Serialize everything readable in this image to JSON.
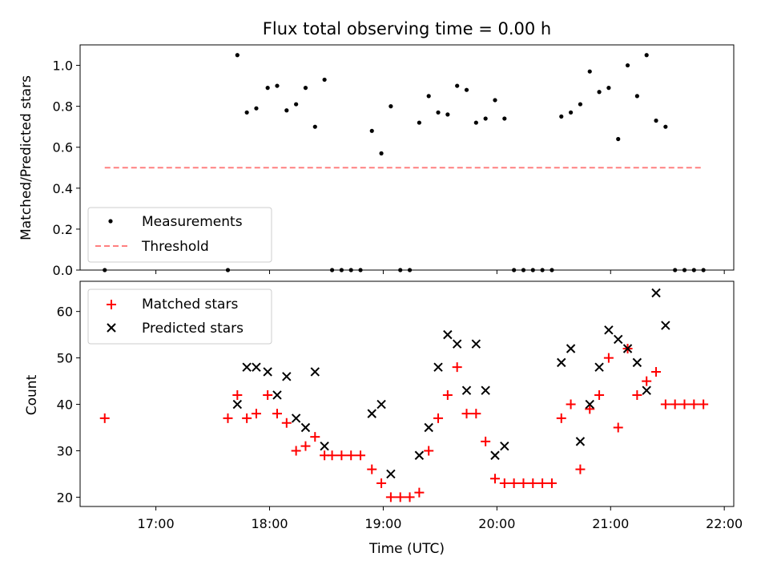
{
  "chart_data": [
    {
      "type": "scatter",
      "title": "Flux total observing time = 0.00 h",
      "xlabel": "",
      "ylabel": "Matched/Predicted stars",
      "xlim": [
        "16:20",
        "22:05"
      ],
      "ylim": [
        0,
        1.1
      ],
      "yticks": [
        "0.0",
        "0.2",
        "0.4",
        "0.6",
        "0.8",
        "1.0"
      ],
      "legend_position": "lower-left",
      "grid": false,
      "series": [
        {
          "name": "Measurements",
          "marker": "dot",
          "color": "#000000",
          "points": [
            [
              "16:33",
              0.0
            ],
            [
              "17:38",
              0.0
            ],
            [
              "17:43",
              1.05
            ],
            [
              "17:48",
              0.77
            ],
            [
              "17:53",
              0.79
            ],
            [
              "17:59",
              0.89
            ],
            [
              "18:04",
              0.9
            ],
            [
              "18:09",
              0.78
            ],
            [
              "18:14",
              0.81
            ],
            [
              "18:19",
              0.89
            ],
            [
              "18:24",
              0.7
            ],
            [
              "18:29",
              0.93
            ],
            [
              "18:33",
              0.0
            ],
            [
              "18:38",
              0.0
            ],
            [
              "18:43",
              0.0
            ],
            [
              "18:48",
              0.0
            ],
            [
              "18:54",
              0.68
            ],
            [
              "18:59",
              0.57
            ],
            [
              "19:04",
              0.8
            ],
            [
              "19:09",
              0.0
            ],
            [
              "19:14",
              0.0
            ],
            [
              "19:19",
              0.72
            ],
            [
              "19:24",
              0.85
            ],
            [
              "19:29",
              0.77
            ],
            [
              "19:34",
              0.76
            ],
            [
              "19:39",
              0.9
            ],
            [
              "19:44",
              0.88
            ],
            [
              "19:49",
              0.72
            ],
            [
              "19:54",
              0.74
            ],
            [
              "19:59",
              0.83
            ],
            [
              "20:04",
              0.74
            ],
            [
              "20:09",
              0.0
            ],
            [
              "20:14",
              0.0
            ],
            [
              "20:19",
              0.0
            ],
            [
              "20:24",
              0.0
            ],
            [
              "20:29",
              0.0
            ],
            [
              "20:34",
              0.75
            ],
            [
              "20:39",
              0.77
            ],
            [
              "20:44",
              0.81
            ],
            [
              "20:49",
              0.97
            ],
            [
              "20:54",
              0.87
            ],
            [
              "20:59",
              0.89
            ],
            [
              "21:04",
              0.64
            ],
            [
              "21:09",
              1.0
            ],
            [
              "21:14",
              0.85
            ],
            [
              "21:19",
              1.05
            ],
            [
              "21:24",
              0.73
            ],
            [
              "21:29",
              0.7
            ],
            [
              "21:34",
              0.0
            ],
            [
              "21:39",
              0.0
            ],
            [
              "21:44",
              0.0
            ],
            [
              "21:49",
              0.0
            ]
          ]
        },
        {
          "name": "Threshold",
          "style": "dashed-line",
          "color": "#ff8080",
          "points": [
            [
              "16:33",
              0.5
            ],
            [
              "21:49",
              0.5
            ]
          ]
        }
      ]
    },
    {
      "type": "scatter",
      "title": "",
      "xlabel": "Time (UTC)",
      "ylabel": "Count",
      "xlim": [
        "16:20",
        "22:05"
      ],
      "ylim": [
        18,
        66.5
      ],
      "xticks": [
        "17:00",
        "18:00",
        "19:00",
        "20:00",
        "21:00",
        "22:00"
      ],
      "yticks": [
        "20",
        "30",
        "40",
        "50",
        "60"
      ],
      "legend_position": "upper-left",
      "grid": false,
      "series": [
        {
          "name": "Matched stars",
          "marker": "plus",
          "color": "#ff0000",
          "points": [
            [
              "16:33",
              37
            ],
            [
              "17:38",
              37
            ],
            [
              "17:43",
              42
            ],
            [
              "17:48",
              37
            ],
            [
              "17:53",
              38
            ],
            [
              "17:59",
              42
            ],
            [
              "18:04",
              38
            ],
            [
              "18:09",
              36
            ],
            [
              "18:14",
              30
            ],
            [
              "18:19",
              31
            ],
            [
              "18:24",
              33
            ],
            [
              "18:29",
              29
            ],
            [
              "18:33",
              29
            ],
            [
              "18:38",
              29
            ],
            [
              "18:43",
              29
            ],
            [
              "18:48",
              29
            ],
            [
              "18:54",
              26
            ],
            [
              "18:59",
              23
            ],
            [
              "19:04",
              20
            ],
            [
              "19:09",
              20
            ],
            [
              "19:14",
              20
            ],
            [
              "19:19",
              21
            ],
            [
              "19:24",
              30
            ],
            [
              "19:29",
              37
            ],
            [
              "19:34",
              42
            ],
            [
              "19:39",
              48
            ],
            [
              "19:44",
              38
            ],
            [
              "19:49",
              38
            ],
            [
              "19:54",
              32
            ],
            [
              "19:59",
              24
            ],
            [
              "20:04",
              23
            ],
            [
              "20:09",
              23
            ],
            [
              "20:14",
              23
            ],
            [
              "20:19",
              23
            ],
            [
              "20:24",
              23
            ],
            [
              "20:29",
              23
            ],
            [
              "20:34",
              37
            ],
            [
              "20:39",
              40
            ],
            [
              "20:44",
              26
            ],
            [
              "20:49",
              39
            ],
            [
              "20:54",
              42
            ],
            [
              "20:59",
              50
            ],
            [
              "21:04",
              35
            ],
            [
              "21:09",
              52
            ],
            [
              "21:14",
              42
            ],
            [
              "21:19",
              45
            ],
            [
              "21:24",
              47
            ],
            [
              "21:29",
              40
            ],
            [
              "21:34",
              40
            ],
            [
              "21:39",
              40
            ],
            [
              "21:44",
              40
            ],
            [
              "21:49",
              40
            ]
          ]
        },
        {
          "name": "Predicted stars",
          "marker": "x",
          "color": "#000000",
          "points": [
            [
              "17:43",
              40
            ],
            [
              "17:48",
              48
            ],
            [
              "17:53",
              48
            ],
            [
              "17:59",
              47
            ],
            [
              "18:04",
              42
            ],
            [
              "18:09",
              46
            ],
            [
              "18:14",
              37
            ],
            [
              "18:19",
              35
            ],
            [
              "18:24",
              47
            ],
            [
              "18:29",
              31
            ],
            [
              "18:54",
              38
            ],
            [
              "18:59",
              40
            ],
            [
              "19:04",
              25
            ],
            [
              "19:19",
              29
            ],
            [
              "19:24",
              35
            ],
            [
              "19:29",
              48
            ],
            [
              "19:34",
              55
            ],
            [
              "19:39",
              53
            ],
            [
              "19:44",
              43
            ],
            [
              "19:49",
              53
            ],
            [
              "19:54",
              43
            ],
            [
              "19:59",
              29
            ],
            [
              "20:04",
              31
            ],
            [
              "20:34",
              49
            ],
            [
              "20:39",
              52
            ],
            [
              "20:44",
              32
            ],
            [
              "20:49",
              40
            ],
            [
              "20:54",
              48
            ],
            [
              "20:59",
              56
            ],
            [
              "21:04",
              54
            ],
            [
              "21:09",
              52
            ],
            [
              "21:14",
              49
            ],
            [
              "21:19",
              43
            ],
            [
              "21:24",
              64
            ],
            [
              "21:29",
              57
            ]
          ]
        }
      ]
    }
  ]
}
